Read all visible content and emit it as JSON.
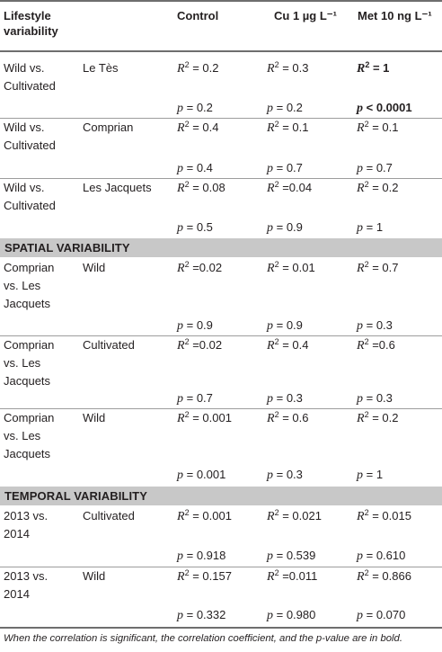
{
  "header": {
    "col1": "Lifestyle variability",
    "col3": "Control",
    "col4": "Cu 1 µg L⁻¹",
    "col5": "Met 10 ng L⁻¹"
  },
  "sections": [
    {
      "title": "",
      "groups": [
        {
          "comparison": "Wild vs. Cultivated",
          "site": "Le Tès",
          "r2": [
            "R² = 0.2",
            "R² = 0.3",
            "R² = 1"
          ],
          "p": [
            "p = 0.2",
            "p = 0.2",
            "p < 0.0001"
          ],
          "bold_col": 2
        },
        {
          "comparison": "Wild vs. Cultivated",
          "site": "Comprian",
          "r2": [
            "R² = 0.4",
            "R² = 0.1",
            "R² = 0.1"
          ],
          "p": [
            "p = 0.4",
            "p = 0.7",
            "p = 0.7"
          ]
        },
        {
          "comparison": "Wild vs. Cultivated",
          "site": "Les Jacquets",
          "r2": [
            "R² = 0.08",
            "R² =0.04",
            "R² = 0.2"
          ],
          "p": [
            "p = 0.5",
            "p = 0.9",
            "p = 1"
          ]
        }
      ]
    },
    {
      "title": "SPATIAL VARIABILITY",
      "groups": [
        {
          "comparison": "Comprian vs. Les Jacquets",
          "site": "Wild",
          "r2": [
            "R² =0.02",
            "R² = 0.01",
            "R² = 0.7"
          ],
          "p": [
            "p = 0.9",
            "p = 0.9",
            "p = 0.3"
          ]
        },
        {
          "comparison": "Comprian vs. Les Jacquets",
          "site": "Cultivated",
          "r2": [
            "R² =0.02",
            "R² = 0.4",
            "R² =0.6"
          ],
          "p": [
            "p = 0.7",
            "p = 0.3",
            "p = 0.3"
          ]
        },
        {
          "comparison": "Comprian vs. Les Jacquets",
          "site": "Wild",
          "r2": [
            "R² = 0.001",
            "R² = 0.6",
            "R² = 0.2"
          ],
          "p": [
            "p = 0.001",
            "p = 0.3",
            "p = 1"
          ]
        }
      ]
    },
    {
      "title": "TEMPORAL VARIABILITY",
      "groups": [
        {
          "comparison": "2013 vs. 2014",
          "site": "Cultivated",
          "r2": [
            "R² = 0.001",
            "R² = 0.021",
            "R² = 0.015"
          ],
          "p": [
            "p = 0.918",
            "p = 0.539",
            "p = 0.610"
          ]
        },
        {
          "comparison": "2013 vs. 2014",
          "site": "Wild",
          "r2": [
            "R² = 0.157",
            "R² =0.011",
            "R² = 0.866"
          ],
          "p": [
            "p = 0.332",
            "p = 0.980",
            "p = 0.070"
          ]
        }
      ]
    }
  ],
  "footnote": "When the correlation is significant, the correlation coefficient, and the p-value are in bold."
}
